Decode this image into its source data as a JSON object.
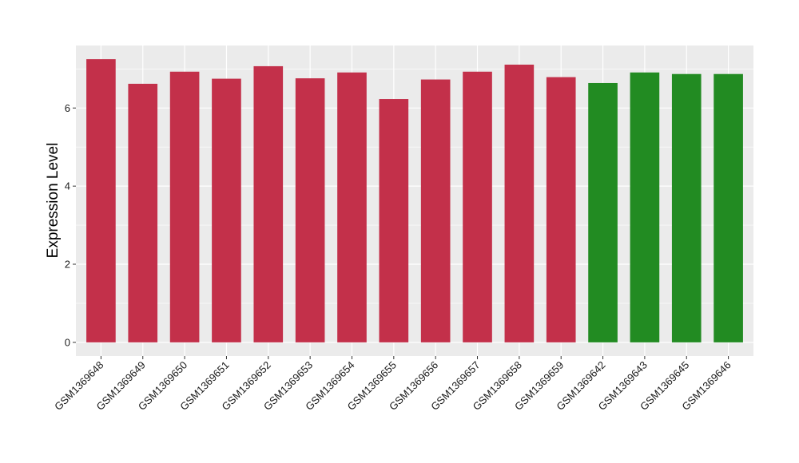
{
  "chart_data": {
    "type": "bar",
    "title": "",
    "xlabel": "",
    "ylabel": "Expression Level",
    "ylim": [
      -0.35,
      7.6
    ],
    "yticks": [
      0,
      2,
      4,
      6
    ],
    "grid": true,
    "categories": [
      "GSM1369648",
      "GSM1369649",
      "GSM1369650",
      "GSM1369651",
      "GSM1369652",
      "GSM1369653",
      "GSM1369654",
      "GSM1369655",
      "GSM1369656",
      "GSM1369657",
      "GSM1369658",
      "GSM1369659",
      "GSM1369642",
      "GSM1369643",
      "GSM1369645",
      "GSM1369646"
    ],
    "values": [
      7.25,
      6.62,
      6.93,
      6.75,
      7.07,
      6.76,
      6.91,
      6.23,
      6.73,
      6.93,
      7.11,
      6.79,
      6.64,
      6.91,
      6.87,
      6.87
    ],
    "bar_colors": [
      "#c3304a",
      "#c3304a",
      "#c3304a",
      "#c3304a",
      "#c3304a",
      "#c3304a",
      "#c3304a",
      "#c3304a",
      "#c3304a",
      "#c3304a",
      "#c3304a",
      "#c3304a",
      "#228b22",
      "#228b22",
      "#228b22",
      "#228b22"
    ],
    "panel_color": "#ebebeb",
    "grid_color": "#ffffff"
  }
}
